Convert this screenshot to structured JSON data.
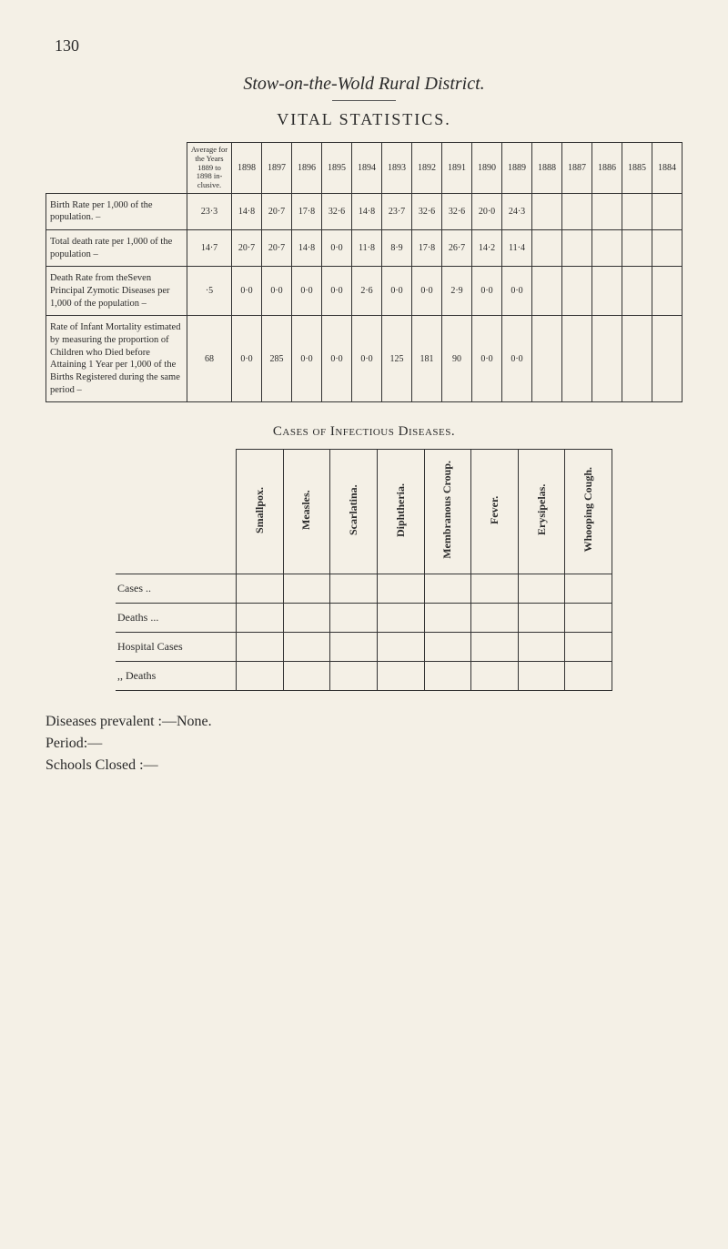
{
  "page_number": "130",
  "title": "Stow-on-the-Wold Rural District.",
  "subtitle": "VITAL STATISTICS.",
  "colors": {
    "background": "#f4f0e6",
    "text": "#2a2a2a",
    "border": "#333333"
  },
  "vital_table": {
    "avg_header": "Average for the Years 1889 to 1898 in-clusive.",
    "years": [
      "1898",
      "1897",
      "1896",
      "1895",
      "1894",
      "1893",
      "1892",
      "1891",
      "1890",
      "1889",
      "1888",
      "1887",
      "1886",
      "1885",
      "1884"
    ],
    "rows": [
      {
        "label": "Birth Rate per 1,000 of the population. –",
        "avg": "23·3",
        "values": [
          "14·8",
          "20·7",
          "17·8",
          "32·6",
          "14·8",
          "23·7",
          "32·6",
          "32·6",
          "20·0",
          "24·3",
          "",
          "",
          "",
          "",
          ""
        ]
      },
      {
        "label": "Total death rate per 1,000 of the population –",
        "avg": "14·7",
        "values": [
          "20·7",
          "20·7",
          "14·8",
          "0·0",
          "11·8",
          "8·9",
          "17·8",
          "26·7",
          "14·2",
          "11·4",
          "",
          "",
          "",
          "",
          ""
        ]
      },
      {
        "label": "Death Rate from theSeven Principal Zymotic Diseases per 1,000 of the population –",
        "avg": "·5",
        "values": [
          "0·0",
          "0·0",
          "0·0",
          "0·0",
          "2·6",
          "0·0",
          "0·0",
          "2·9",
          "0·0",
          "0·0",
          "",
          "",
          "",
          "",
          ""
        ]
      },
      {
        "label": "Rate of Infant Mortality estimated by measuring the proportion of Children who Died before Attaining 1 Year per 1,000 of the Births Registered during the same period –",
        "avg": "68",
        "values": [
          "0·0",
          "285",
          "0·0",
          "0·0",
          "0·0",
          "125",
          "181",
          "90",
          "0·0",
          "0·0",
          "",
          "",
          "",
          "",
          ""
        ]
      }
    ]
  },
  "infectious_title": "Cases of Infectious Diseases.",
  "infectious_table": {
    "columns": [
      "Smallpox.",
      "Measles.",
      "Scarlatina.",
      "Diphtheria.",
      "Membranous Croup.",
      "Fever.",
      "Erysipelas.",
      "Whooping Cough."
    ],
    "rows": [
      {
        "label": "Cases        ..",
        "values": [
          "",
          "",
          "",
          "",
          "",
          "",
          "",
          ""
        ]
      },
      {
        "label": "Deaths      ...",
        "values": [
          "",
          "",
          "",
          "",
          "",
          "",
          "",
          ""
        ]
      },
      {
        "label": "Hospital Cases",
        "values": [
          "",
          "",
          "",
          "",
          "",
          "",
          "",
          ""
        ]
      },
      {
        "label": "  ,,      Deaths",
        "values": [
          "",
          "",
          "",
          "",
          "",
          "",
          "",
          ""
        ]
      }
    ]
  },
  "footer": {
    "line1": "Diseases prevalent :—None.",
    "line2": "Period:—",
    "line3": "Schools Closed :—"
  }
}
